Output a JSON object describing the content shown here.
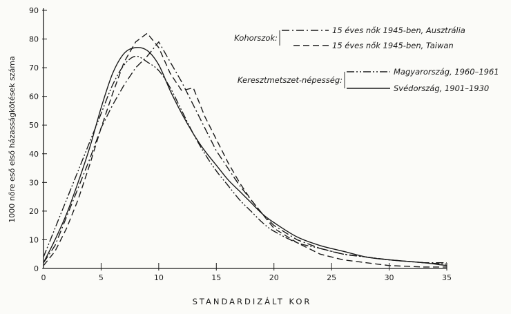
{
  "chart_data": {
    "type": "line",
    "title": "",
    "xlabel": "STANDARDIZÁLT KOR",
    "ylabel": "1000 nőre eső első házasságkötések száma",
    "xlim": [
      0,
      35
    ],
    "ylim": [
      0,
      90
    ],
    "x_ticks": [
      0,
      5,
      10,
      15,
      20,
      25,
      30,
      35
    ],
    "y_ticks": [
      0,
      10,
      20,
      30,
      40,
      50,
      60,
      70,
      80,
      90
    ],
    "grid": false,
    "legend_placement": "top-right",
    "legend_groups": [
      {
        "label": "Kohorszok:",
        "series": [
          0,
          1
        ]
      },
      {
        "label": "Keresztmetszet-népesség:",
        "series": [
          2,
          3
        ]
      }
    ],
    "series": [
      {
        "name": "15 éves nők 1945-ben, Ausztrália",
        "style": "dashdot",
        "x": [
          0,
          1,
          2,
          3,
          4,
          5,
          6,
          7,
          8,
          9,
          10,
          11,
          12,
          13,
          14,
          15,
          16,
          17,
          18,
          19,
          20,
          22,
          24,
          26,
          28,
          30,
          33,
          35
        ],
        "y": [
          2,
          8,
          18,
          28,
          38,
          49,
          57,
          64,
          70,
          74,
          79,
          72,
          65,
          57,
          49,
          41,
          35,
          29,
          24,
          19,
          15,
          10,
          7,
          5,
          4,
          3,
          2,
          2
        ]
      },
      {
        "name": "15 éves nők 1945-ben, Taiwan",
        "style": "dashed",
        "x": [
          0,
          1,
          2,
          3,
          4,
          5,
          6,
          7,
          8,
          9,
          10,
          11,
          12,
          13,
          14,
          15,
          16,
          17,
          18,
          19,
          20,
          22,
          24,
          26,
          28,
          30,
          33,
          35
        ],
        "y": [
          1,
          6,
          14,
          24,
          36,
          49,
          61,
          72,
          79,
          82,
          77,
          68,
          62,
          63,
          53,
          45,
          37,
          30,
          24,
          19,
          14,
          9,
          5,
          3,
          2,
          1,
          0.5,
          0.5
        ]
      },
      {
        "name": "Magyarország, 1960–1961",
        "style": "dashdotdot",
        "x": [
          0,
          1,
          2,
          3,
          4,
          5,
          6,
          7,
          8,
          9,
          10,
          11,
          12,
          13,
          14,
          15,
          16,
          17,
          18,
          19,
          20,
          22,
          24,
          26,
          28,
          30,
          33,
          35
        ],
        "y": [
          4,
          14,
          24,
          34,
          44,
          54,
          64,
          71,
          74,
          72,
          69,
          63,
          55,
          47,
          40,
          34,
          29,
          24,
          20,
          16,
          13,
          9,
          7,
          5,
          4,
          3,
          2,
          1.5
        ]
      },
      {
        "name": "Svédország, 1901–1930",
        "style": "solid",
        "x": [
          0,
          1,
          2,
          3,
          4,
          5,
          6,
          7,
          8,
          9,
          10,
          11,
          12,
          13,
          14,
          15,
          16,
          17,
          18,
          19,
          20,
          22,
          24,
          26,
          28,
          30,
          33,
          35
        ],
        "y": [
          2,
          10,
          19,
          30,
          42,
          56,
          68,
          75,
          77,
          76,
          71,
          62,
          54,
          47,
          41,
          36,
          31,
          27,
          23,
          19,
          16,
          11,
          8,
          6,
          4,
          3,
          2,
          1
        ]
      }
    ]
  }
}
